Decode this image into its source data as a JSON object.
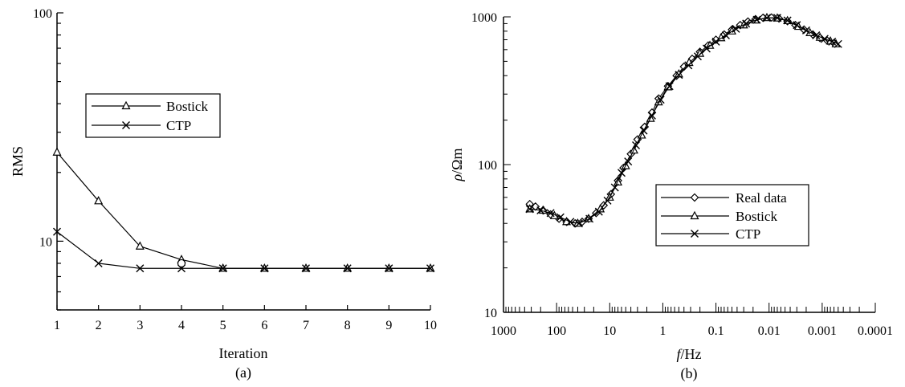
{
  "chart_data": [
    {
      "type": "line",
      "caption": "(a)",
      "xlabel": "Iteration",
      "ylabel": "RMS",
      "yscale": "log",
      "xlim": [
        1,
        10
      ],
      "ylim": [
        5,
        100
      ],
      "x_ticks": [
        "1",
        "2",
        "3",
        "4",
        "5",
        "6",
        "7",
        "8",
        "9",
        "10"
      ],
      "y_tick_labels": [
        {
          "value": 10,
          "label": "10"
        },
        {
          "value": 100,
          "label": "100"
        }
      ],
      "x": [
        1,
        2,
        3,
        4,
        5,
        6,
        7,
        8,
        9,
        10
      ],
      "series": [
        {
          "name": "Bostick",
          "marker": "triangle",
          "values": [
            24.5,
            15.0,
            9.5,
            8.3,
            7.6,
            7.6,
            7.6,
            7.6,
            7.6,
            7.6
          ]
        },
        {
          "name": "CTP",
          "marker": "x",
          "values": [
            11.0,
            8.0,
            7.6,
            7.6,
            7.6,
            7.6,
            7.6,
            7.6,
            7.6,
            7.6
          ]
        }
      ],
      "extra_markers": [
        {
          "shape": "circle",
          "x": 4,
          "y": 8.0
        }
      ],
      "legend": "upper-middle",
      "grid": false
    },
    {
      "type": "line",
      "caption": "(b)",
      "xlabel_italic": "f",
      "xlabel_rest": "/Hz",
      "ylabel_italic": "ρ",
      "ylabel_rest": "/Ωm",
      "xscale": "log",
      "xaxis_reversed": true,
      "yscale": "log",
      "xlim": [
        1000,
        0.0001
      ],
      "ylim": [
        10,
        1000
      ],
      "x_tick_labels": [
        {
          "value": 1000,
          "label": "1000"
        },
        {
          "value": 100,
          "label": "100"
        },
        {
          "value": 10,
          "label": "10"
        },
        {
          "value": 1,
          "label": "1"
        },
        {
          "value": 0.1,
          "label": "0.1"
        },
        {
          "value": 0.01,
          "label": "0.01"
        },
        {
          "value": 0.001,
          "label": "0.001"
        },
        {
          "value": 0.0001,
          "label": "0.0001"
        }
      ],
      "y_tick_labels": [
        {
          "value": 10,
          "label": "10"
        },
        {
          "value": 100,
          "label": "100"
        },
        {
          "value": 1000,
          "label": "1000"
        }
      ],
      "series": [
        {
          "name": "Real data",
          "marker": "diamond",
          "points": [
            [
              320,
              54
            ],
            [
              250,
              52
            ],
            [
              180,
              49
            ],
            [
              130,
              46
            ],
            [
              90,
              43
            ],
            [
              65,
              41
            ],
            [
              45,
              40
            ],
            [
              33,
              41
            ],
            [
              25,
              43
            ],
            [
              18,
              47
            ],
            [
              13,
              53
            ],
            [
              9.5,
              63
            ],
            [
              7,
              78
            ],
            [
              5.5,
              95
            ],
            [
              4,
              118
            ],
            [
              3,
              148
            ],
            [
              2.2,
              180
            ],
            [
              1.6,
              225
            ],
            [
              1.2,
              280
            ],
            [
              0.8,
              340
            ],
            [
              0.55,
              400
            ],
            [
              0.4,
              460
            ],
            [
              0.28,
              520
            ],
            [
              0.2,
              580
            ],
            [
              0.14,
              640
            ],
            [
              0.1,
              700
            ],
            [
              0.07,
              760
            ],
            [
              0.05,
              820
            ],
            [
              0.035,
              880
            ],
            [
              0.025,
              930
            ],
            [
              0.018,
              965
            ],
            [
              0.013,
              985
            ],
            [
              0.009,
              990
            ],
            [
              0.0065,
              975
            ],
            [
              0.0045,
              935
            ],
            [
              0.0032,
              880
            ],
            [
              0.0022,
              820
            ],
            [
              0.0015,
              760
            ],
            [
              0.0011,
              720
            ],
            [
              0.0008,
              690
            ],
            [
              0.0006,
              665
            ]
          ]
        },
        {
          "name": "Bostick",
          "marker": "triangle",
          "points": [
            [
              320,
              50
            ],
            [
              180,
              49
            ],
            [
              110,
              45
            ],
            [
              65,
              41
            ],
            [
              40,
              40
            ],
            [
              25,
              43
            ],
            [
              15,
              50
            ],
            [
              10,
              60
            ],
            [
              7,
              76
            ],
            [
              5,
              98
            ],
            [
              3.5,
              125
            ],
            [
              2.5,
              158
            ],
            [
              1.7,
              205
            ],
            [
              1.2,
              265
            ],
            [
              0.8,
              335
            ],
            [
              0.5,
              410
            ],
            [
              0.32,
              490
            ],
            [
              0.2,
              565
            ],
            [
              0.13,
              640
            ],
            [
              0.08,
              720
            ],
            [
              0.05,
              800
            ],
            [
              0.03,
              880
            ],
            [
              0.018,
              950
            ],
            [
              0.011,
              985
            ],
            [
              0.007,
              980
            ],
            [
              0.0045,
              940
            ],
            [
              0.0028,
              860
            ],
            [
              0.0017,
              780
            ],
            [
              0.0011,
              725
            ],
            [
              0.0007,
              685
            ],
            [
              0.00055,
              655
            ]
          ]
        },
        {
          "name": "CTP",
          "marker": "x",
          "points": [
            [
              320,
              50
            ],
            [
              200,
              49
            ],
            [
              130,
              47
            ],
            [
              85,
              44
            ],
            [
              55,
              41
            ],
            [
              38,
              40
            ],
            [
              24,
              43
            ],
            [
              16,
              48
            ],
            [
              11,
              57
            ],
            [
              8,
              70
            ],
            [
              6,
              88
            ],
            [
              4.5,
              105
            ],
            [
              3.2,
              135
            ],
            [
              2.3,
              170
            ],
            [
              1.6,
              215
            ],
            [
              1.1,
              275
            ],
            [
              0.75,
              340
            ],
            [
              0.5,
              405
            ],
            [
              0.33,
              470
            ],
            [
              0.22,
              540
            ],
            [
              0.15,
              610
            ],
            [
              0.1,
              680
            ],
            [
              0.065,
              750
            ],
            [
              0.042,
              830
            ],
            [
              0.027,
              900
            ],
            [
              0.017,
              955
            ],
            [
              0.011,
              985
            ],
            [
              0.007,
              985
            ],
            [
              0.0045,
              945
            ],
            [
              0.003,
              880
            ],
            [
              0.002,
              810
            ],
            [
              0.0013,
              750
            ],
            [
              0.0009,
              710
            ],
            [
              0.00065,
              680
            ],
            [
              0.0005,
              655
            ]
          ]
        }
      ],
      "legend": "center-right",
      "grid": false
    }
  ]
}
